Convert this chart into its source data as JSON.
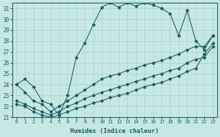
{
  "xlabel": "Humidex (Indice chaleur)",
  "xlim": [
    -0.5,
    23.5
  ],
  "ylim": [
    21,
    31.5
  ],
  "yticks": [
    21,
    22,
    23,
    24,
    25,
    26,
    27,
    28,
    29,
    30,
    31
  ],
  "x_ticks": [
    0,
    1,
    2,
    3,
    4,
    5,
    6,
    7,
    8,
    9,
    10,
    11,
    12,
    13,
    14,
    15,
    16,
    17,
    18,
    19,
    20,
    21,
    22,
    23
  ],
  "bg_color": "#c5e8e5",
  "grid_color": "#a8d5d0",
  "line_color": "#1a5c5c",
  "series1_y": [
    24.0,
    24.5,
    23.8,
    22.5,
    22.2,
    21.2,
    23.0,
    26.5,
    27.8,
    29.5,
    31.1,
    31.5,
    31.1,
    31.5,
    31.2,
    31.5,
    31.3,
    31.0,
    30.5,
    28.5,
    30.8,
    28.0,
    27.2,
    28.5
  ],
  "series2_y": [
    24.0,
    23.3,
    22.5,
    22.2,
    21.5,
    22.0,
    22.5,
    23.0,
    23.5,
    24.0,
    24.5,
    24.8,
    25.0,
    25.3,
    25.5,
    25.8,
    26.0,
    26.2,
    26.5,
    26.8,
    27.2,
    27.5,
    27.5,
    28.5
  ],
  "series3_y": [
    22.5,
    22.2,
    21.8,
    21.5,
    21.2,
    21.5,
    22.0,
    22.3,
    22.7,
    23.0,
    23.3,
    23.5,
    23.8,
    24.0,
    24.3,
    24.5,
    24.8,
    25.0,
    25.3,
    25.5,
    26.0,
    26.3,
    26.5,
    27.5
  ],
  "series4_y": [
    22.2,
    22.0,
    21.5,
    21.2,
    21.0,
    21.2,
    21.5,
    21.8,
    22.0,
    22.3,
    22.5,
    22.8,
    23.0,
    23.2,
    23.5,
    23.8,
    24.0,
    24.2,
    24.5,
    24.8,
    25.2,
    25.5,
    26.8,
    27.8
  ]
}
